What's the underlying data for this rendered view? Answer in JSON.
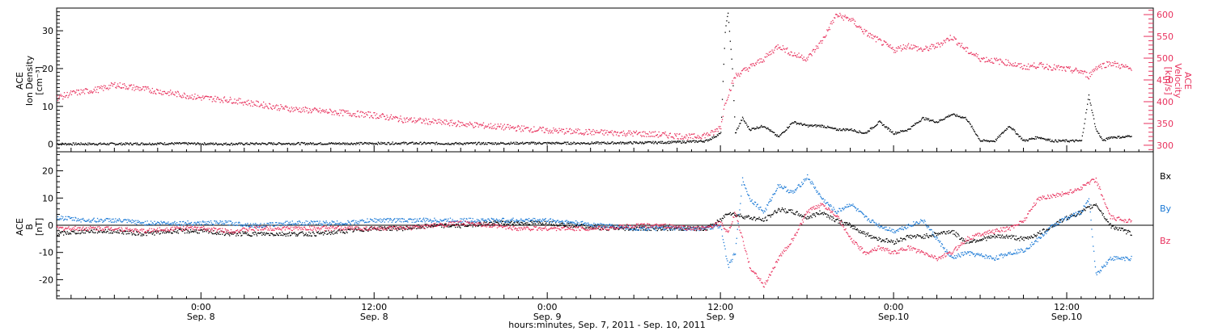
{
  "colors": {
    "black": "#000000",
    "pink": "#e8325e",
    "blue": "#1c7ad6",
    "axis": "#000000"
  },
  "x_axis": {
    "caption": "hours:minutes, Sep.  7, 2011 - Sep. 10, 2011",
    "start_hours": 0,
    "end_hours": 76,
    "tick_labels": [
      {
        "t": 10,
        "time": "0:00",
        "date": "Sep. 8"
      },
      {
        "t": 22,
        "time": "12:00",
        "date": "Sep. 8"
      },
      {
        "t": 34,
        "time": "0:00",
        "date": "Sep. 9"
      },
      {
        "t": 46,
        "time": "12:00",
        "date": "Sep. 9"
      },
      {
        "t": 58,
        "time": "0:00",
        "date": "Sep.10"
      },
      {
        "t": 70,
        "time": "12:00",
        "date": "Sep.10"
      }
    ]
  },
  "top_panel": {
    "left_label_lines": [
      "ACE",
      "Ion Density",
      "[cm⁻³]"
    ],
    "right_label_lines": [
      "ACE",
      "Velocity",
      "[km/s]"
    ],
    "left_ticks": [
      "0",
      "10",
      "20",
      "30"
    ],
    "right_ticks": [
      "300",
      "350",
      "400",
      "450",
      "500",
      "550",
      "600"
    ]
  },
  "bottom_panel": {
    "left_label_lines": [
      "ACE",
      "B",
      "[nT]"
    ],
    "left_ticks": [
      "-20",
      "-10",
      "0",
      "10",
      "20"
    ],
    "legend": [
      "Bx",
      "By",
      "Bz"
    ]
  },
  "chart_data": [
    {
      "type": "scatter",
      "ylabel": "ACE Ion Density [cm⁻³]",
      "y2label": "ACE Velocity [km/s]",
      "ylim": [
        -2,
        36
      ],
      "y2lim": [
        285,
        615
      ],
      "series": [
        {
          "name": "Ion Density",
          "axis": "left",
          "color": "black",
          "x": [
            0,
            4,
            8,
            12,
            16,
            20,
            24,
            28,
            32,
            36,
            40,
            42,
            44,
            45,
            45.5,
            46,
            46.3,
            46.5,
            46.8,
            47,
            47.5,
            48,
            49,
            50,
            51,
            52,
            53,
            54,
            55,
            56,
            57,
            58,
            59,
            60,
            61,
            62,
            63,
            64,
            65,
            66,
            67,
            68,
            69,
            70,
            71,
            71.5,
            72,
            72.5,
            73,
            74,
            74.5
          ],
          "y": [
            0.2,
            0.2,
            0.3,
            0.2,
            0.3,
            0.3,
            0.4,
            0.3,
            0.4,
            0.4,
            0.5,
            0.6,
            0.8,
            1,
            2,
            3,
            30,
            35,
            20,
            3,
            7,
            4,
            5,
            2,
            6,
            5,
            5,
            4,
            4,
            3,
            6,
            3,
            4,
            7,
            6,
            8,
            7,
            1,
            1,
            5,
            1,
            2,
            1,
            1,
            1,
            13,
            4,
            1,
            2,
            2,
            2.5
          ]
        },
        {
          "name": "Velocity",
          "axis": "right",
          "color": "pink",
          "x": [
            0,
            1,
            2,
            3,
            4,
            5,
            6,
            8,
            10,
            12,
            14,
            16,
            18,
            20,
            22,
            24,
            26,
            28,
            30,
            32,
            34,
            36,
            38,
            40,
            42,
            44,
            45,
            45.5,
            46,
            46.3,
            47,
            48,
            49,
            50,
            51,
            52,
            53,
            54,
            55,
            56,
            57,
            58,
            59,
            60,
            61,
            62,
            63,
            64,
            65,
            66,
            67,
            68,
            69,
            70,
            71,
            71.5,
            72,
            73,
            74,
            74.5
          ],
          "y": [
            410,
            420,
            425,
            430,
            440,
            435,
            430,
            420,
            410,
            405,
            395,
            385,
            380,
            375,
            370,
            360,
            355,
            350,
            345,
            340,
            335,
            332,
            330,
            328,
            325,
            320,
            325,
            330,
            345,
            400,
            460,
            480,
            500,
            530,
            510,
            500,
            540,
            600,
            590,
            560,
            540,
            520,
            530,
            520,
            530,
            550,
            520,
            500,
            495,
            490,
            480,
            485,
            480,
            475,
            470,
            460,
            480,
            490,
            480,
            475
          ]
        }
      ]
    },
    {
      "type": "scatter",
      "ylabel": "ACE B [nT]",
      "ylim": [
        -27,
        27
      ],
      "series": [
        {
          "name": "Bx",
          "color": "black",
          "x": [
            0,
            2,
            4,
            6,
            8,
            10,
            12,
            14,
            16,
            18,
            20,
            22,
            24,
            26,
            28,
            30,
            32,
            34,
            36,
            38,
            40,
            42,
            44,
            45,
            46,
            46.5,
            47,
            48,
            49,
            50,
            51,
            52,
            53,
            54,
            55,
            56,
            57,
            58,
            59,
            60,
            61,
            62,
            63,
            64,
            65,
            66,
            67,
            68,
            69,
            70,
            71,
            72,
            73,
            74,
            74.5
          ],
          "y": [
            -3,
            -2,
            -2,
            -3,
            -2,
            -2,
            -3,
            -3,
            -3,
            -3,
            -2,
            -1,
            -1,
            0,
            0,
            1,
            1,
            1,
            0,
            -1,
            -1,
            -1,
            -1,
            -1,
            2,
            5,
            4,
            3,
            2,
            6,
            5,
            3,
            5,
            2,
            0,
            -3,
            -5,
            -6,
            -4,
            -4,
            -3,
            -2,
            -6,
            -5,
            -4,
            -4,
            -5,
            -3,
            0,
            3,
            5,
            8,
            0,
            -2,
            -3
          ]
        },
        {
          "name": "By",
          "color": "blue",
          "x": [
            0,
            2,
            4,
            6,
            8,
            10,
            12,
            14,
            16,
            18,
            20,
            22,
            24,
            26,
            28,
            30,
            32,
            34,
            36,
            38,
            40,
            42,
            44,
            45,
            46,
            46.5,
            47,
            47.5,
            48,
            49,
            50,
            51,
            52,
            53,
            54,
            55,
            56,
            57,
            58,
            59,
            60,
            61,
            62,
            63,
            64,
            65,
            66,
            67,
            68,
            69,
            70,
            71,
            71.5,
            72,
            73,
            74,
            74.5
          ],
          "y": [
            3,
            2,
            2,
            1,
            1,
            1,
            1,
            0,
            1,
            1,
            1,
            2,
            2,
            2,
            2,
            2,
            2,
            2,
            1,
            0,
            -1,
            -1,
            -1,
            -1,
            0,
            -15,
            -10,
            17,
            10,
            5,
            15,
            12,
            18,
            10,
            5,
            8,
            3,
            0,
            -2,
            0,
            2,
            -5,
            -12,
            -10,
            -11,
            -12,
            -10,
            -9,
            -5,
            0,
            3,
            5,
            10,
            -18,
            -12,
            -12,
            -12
          ]
        },
        {
          "name": "Bz",
          "color": "pink",
          "x": [
            0,
            2,
            4,
            6,
            8,
            10,
            12,
            14,
            16,
            18,
            20,
            22,
            24,
            26,
            28,
            30,
            32,
            34,
            36,
            38,
            40,
            42,
            44,
            45,
            46,
            46.5,
            47,
            48,
            49,
            50,
            51,
            52,
            53,
            54,
            55,
            56,
            57,
            58,
            59,
            60,
            61,
            62,
            63,
            64,
            65,
            66,
            67,
            68,
            69,
            70,
            71,
            71.5,
            72,
            73,
            74,
            74.5
          ],
          "y": [
            -1,
            -1,
            -1,
            -2,
            -1,
            -1,
            -2,
            -1,
            -1,
            -1,
            -1,
            -1,
            -1,
            0,
            1,
            0,
            -1,
            -1,
            -1,
            -1,
            0,
            0,
            -1,
            -1,
            1,
            -3,
            5,
            -15,
            -22,
            -12,
            -5,
            5,
            8,
            4,
            -5,
            -10,
            -8,
            -10,
            -8,
            -10,
            -12,
            -10,
            -5,
            -3,
            -2,
            -1,
            2,
            10,
            11,
            12,
            14,
            16,
            17,
            3,
            2,
            2
          ]
        }
      ]
    }
  ]
}
